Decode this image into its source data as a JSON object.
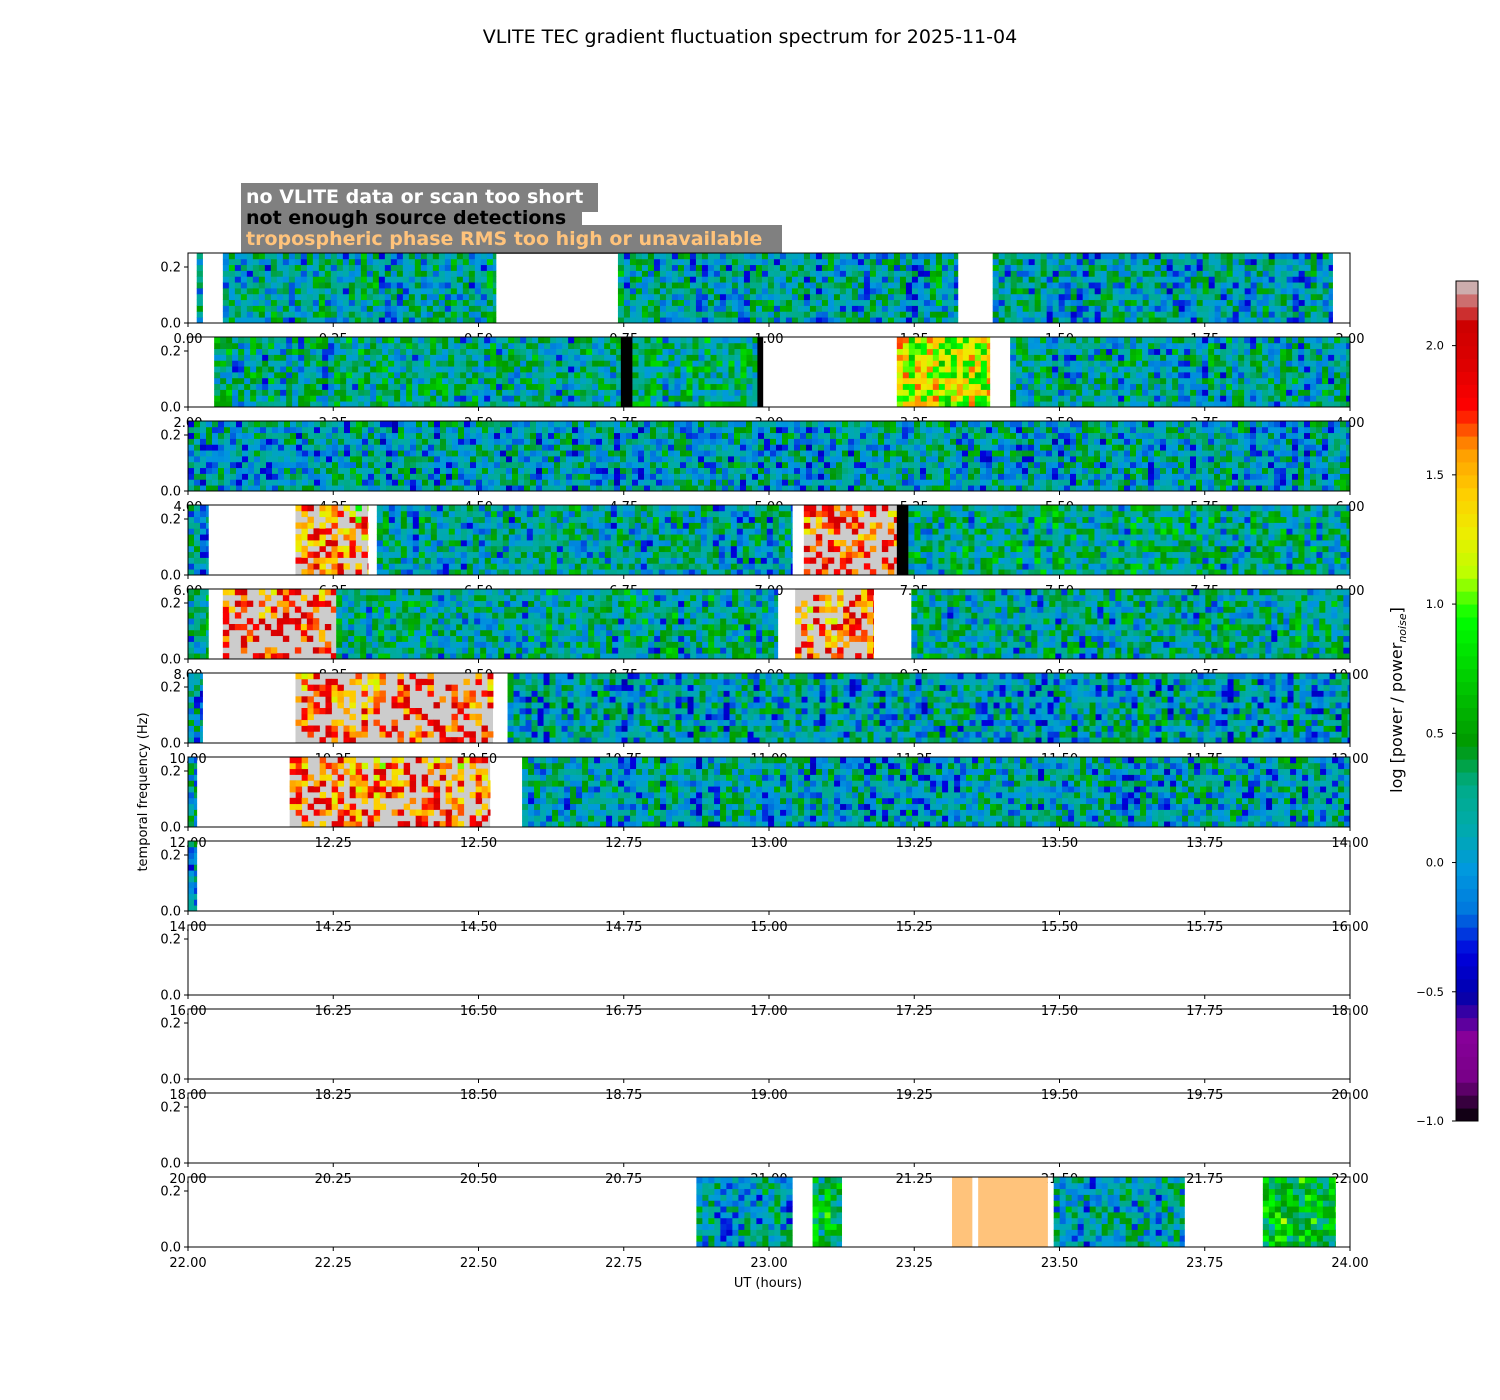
{
  "chart_data": {
    "type": "heatmap",
    "title": "VLITE TEC gradient fluctuation spectrum for 2025-11-04",
    "xlabel": "UT (hours)",
    "ylabel": "temporal frequency (Hz)",
    "y_ticks": [
      "0.0",
      "0.2"
    ],
    "ylim": [
      0,
      0.25
    ],
    "legend": {
      "position": "top-left",
      "entries": [
        {
          "label": "no VLITE data or scan too short",
          "text_color": "#ffffff",
          "meaning": "no_data"
        },
        {
          "label": "not enough source detections",
          "text_color": "#000000",
          "meaning": "few_detections"
        },
        {
          "label": "tropospheric phase RMS too high or unavailable",
          "text_color": "#ffc37b",
          "meaning": "tropo"
        }
      ]
    },
    "colorbar": {
      "label": "log [power / power",
      "label_sub": "noise",
      "label_end": "]",
      "range": [
        -1.0,
        2.25
      ],
      "ticks": [
        {
          "value": -1.0,
          "label": "−1.0"
        },
        {
          "value": -0.5,
          "label": "−0.5"
        },
        {
          "value": 0.0,
          "label": "0.0"
        },
        {
          "value": 0.5,
          "label": "0.5"
        },
        {
          "value": 1.0,
          "label": "1.0"
        },
        {
          "value": 1.5,
          "label": "1.5"
        },
        {
          "value": 2.0,
          "label": "2.0"
        }
      ]
    },
    "status_colors": {
      "few_detections": "#000000",
      "high_power_masked": "#cccccc",
      "tropo": "#ffc37b"
    },
    "panels": [
      {
        "xlim": [
          0,
          2
        ],
        "x_ticks": [
          "0.00",
          "0.25",
          "0.50",
          "0.75",
          "1.00",
          "1.25",
          "1.50",
          "1.75",
          "2.00"
        ],
        "segments": [
          {
            "start": 0.015,
            "end": 0.025,
            "type": "data",
            "mean": 0.0
          },
          {
            "start": 0.06,
            "end": 0.53,
            "type": "data",
            "mean": 0.15
          },
          {
            "start": 0.74,
            "end": 1.325,
            "type": "data",
            "mean": 0.15
          },
          {
            "start": 1.385,
            "end": 1.97,
            "type": "data",
            "mean": 0.1
          }
        ]
      },
      {
        "xlim": [
          2,
          4
        ],
        "x_ticks": [
          "2.00",
          "2.25",
          "2.50",
          "2.75",
          "3.00",
          "3.25",
          "3.50",
          "3.75",
          "4.00"
        ],
        "segments": [
          {
            "start": 2.045,
            "end": 2.745,
            "type": "data",
            "mean": 0.2
          },
          {
            "start": 2.745,
            "end": 2.765,
            "type": "few_detections"
          },
          {
            "start": 2.765,
            "end": 2.98,
            "type": "data",
            "mean": 0.3
          },
          {
            "start": 2.98,
            "end": 2.99,
            "type": "few_detections"
          },
          {
            "start": 3.22,
            "end": 3.38,
            "type": "data",
            "mean": 1.2
          },
          {
            "start": 3.415,
            "end": 4.0,
            "type": "data",
            "mean": 0.15
          }
        ]
      },
      {
        "xlim": [
          4,
          6
        ],
        "x_ticks": [
          "4.00",
          "4.25",
          "4.50",
          "4.75",
          "5.00",
          "5.25",
          "5.50",
          "5.75",
          "6.00"
        ],
        "segments": [
          {
            "start": 4.0,
            "end": 6.0,
            "type": "data",
            "mean": 0.1
          }
        ]
      },
      {
        "xlim": [
          6,
          8
        ],
        "x_ticks": [
          "6.00",
          "6.25",
          "6.50",
          "6.75",
          "7.00",
          "7.25",
          "7.50",
          "7.75",
          "8.00"
        ],
        "segments": [
          {
            "start": 6.0,
            "end": 6.035,
            "type": "data",
            "mean": 0.1
          },
          {
            "start": 6.185,
            "end": 6.31,
            "type": "storm",
            "mean": 1.6
          },
          {
            "start": 6.325,
            "end": 7.04,
            "type": "data",
            "mean": 0.15
          },
          {
            "start": 7.06,
            "end": 7.22,
            "type": "storm",
            "mean": 1.8
          },
          {
            "start": 7.22,
            "end": 7.24,
            "type": "few_detections"
          },
          {
            "start": 7.24,
            "end": 8.0,
            "type": "data",
            "mean": 0.25
          }
        ]
      },
      {
        "xlim": [
          8,
          10
        ],
        "x_ticks": [
          "8.00",
          "8.25",
          "8.50",
          "8.75",
          "9.00",
          "9.25",
          "9.50",
          "9.75",
          "10.00"
        ],
        "segments": [
          {
            "start": 8.0,
            "end": 8.035,
            "type": "data",
            "mean": 0.2
          },
          {
            "start": 8.06,
            "end": 8.255,
            "type": "storm",
            "mean": 1.9
          },
          {
            "start": 8.255,
            "end": 9.015,
            "type": "data",
            "mean": 0.2
          },
          {
            "start": 9.045,
            "end": 9.18,
            "type": "storm",
            "mean": 1.7
          },
          {
            "start": 9.245,
            "end": 10.0,
            "type": "data",
            "mean": 0.2
          }
        ]
      },
      {
        "xlim": [
          10,
          12
        ],
        "x_ticks": [
          "10.00",
          "10.25",
          "10.50",
          "10.75",
          "11.00",
          "11.25",
          "11.50",
          "11.75",
          "12.00"
        ],
        "segments": [
          {
            "start": 10.0,
            "end": 10.025,
            "type": "data",
            "mean": 0.1
          },
          {
            "start": 10.185,
            "end": 10.525,
            "type": "storm",
            "mean": 1.8
          },
          {
            "start": 10.55,
            "end": 12.0,
            "type": "data",
            "mean": 0.1
          }
        ]
      },
      {
        "xlim": [
          12,
          14
        ],
        "x_ticks": [
          "12.00",
          "12.25",
          "12.50",
          "12.75",
          "13.00",
          "13.25",
          "13.50",
          "13.75",
          "14.00"
        ],
        "segments": [
          {
            "start": 12.0,
            "end": 12.015,
            "type": "data",
            "mean": 0.15
          },
          {
            "start": 12.175,
            "end": 12.52,
            "type": "storm",
            "mean": 1.7
          },
          {
            "start": 12.575,
            "end": 14.0,
            "type": "data",
            "mean": 0.1
          }
        ]
      },
      {
        "xlim": [
          14,
          16
        ],
        "x_ticks": [
          "14.00",
          "14.25",
          "14.50",
          "14.75",
          "15.00",
          "15.25",
          "15.50",
          "15.75",
          "16.00"
        ],
        "segments": [
          {
            "start": 14.0,
            "end": 14.015,
            "type": "data",
            "mean": 0.0
          }
        ]
      },
      {
        "xlim": [
          16,
          18
        ],
        "x_ticks": [
          "16.00",
          "16.25",
          "16.50",
          "16.75",
          "17.00",
          "17.25",
          "17.50",
          "17.75",
          "18.00"
        ],
        "segments": []
      },
      {
        "xlim": [
          18,
          20
        ],
        "x_ticks": [
          "18.00",
          "18.25",
          "18.50",
          "18.75",
          "19.00",
          "19.25",
          "19.50",
          "19.75",
          "20.00"
        ],
        "segments": []
      },
      {
        "xlim": [
          20,
          22
        ],
        "x_ticks": [
          "20.00",
          "20.25",
          "20.50",
          "20.75",
          "21.00",
          "21.25",
          "21.50",
          "21.75",
          "22.00"
        ],
        "segments": []
      },
      {
        "xlim": [
          22,
          24
        ],
        "x_ticks": [
          "22.00",
          "22.25",
          "22.50",
          "22.75",
          "23.00",
          "23.25",
          "23.50",
          "23.75",
          "24.00"
        ],
        "segments": [
          {
            "start": 22.875,
            "end": 23.04,
            "type": "data",
            "mean": 0.15
          },
          {
            "start": 23.075,
            "end": 23.125,
            "type": "data",
            "mean": 0.5
          },
          {
            "start": 23.315,
            "end": 23.35,
            "type": "tropo"
          },
          {
            "start": 23.36,
            "end": 23.48,
            "type": "tropo"
          },
          {
            "start": 23.49,
            "end": 23.715,
            "type": "data",
            "mean": 0.15
          },
          {
            "start": 23.85,
            "end": 23.975,
            "type": "data",
            "mean": 0.6
          }
        ]
      }
    ]
  }
}
